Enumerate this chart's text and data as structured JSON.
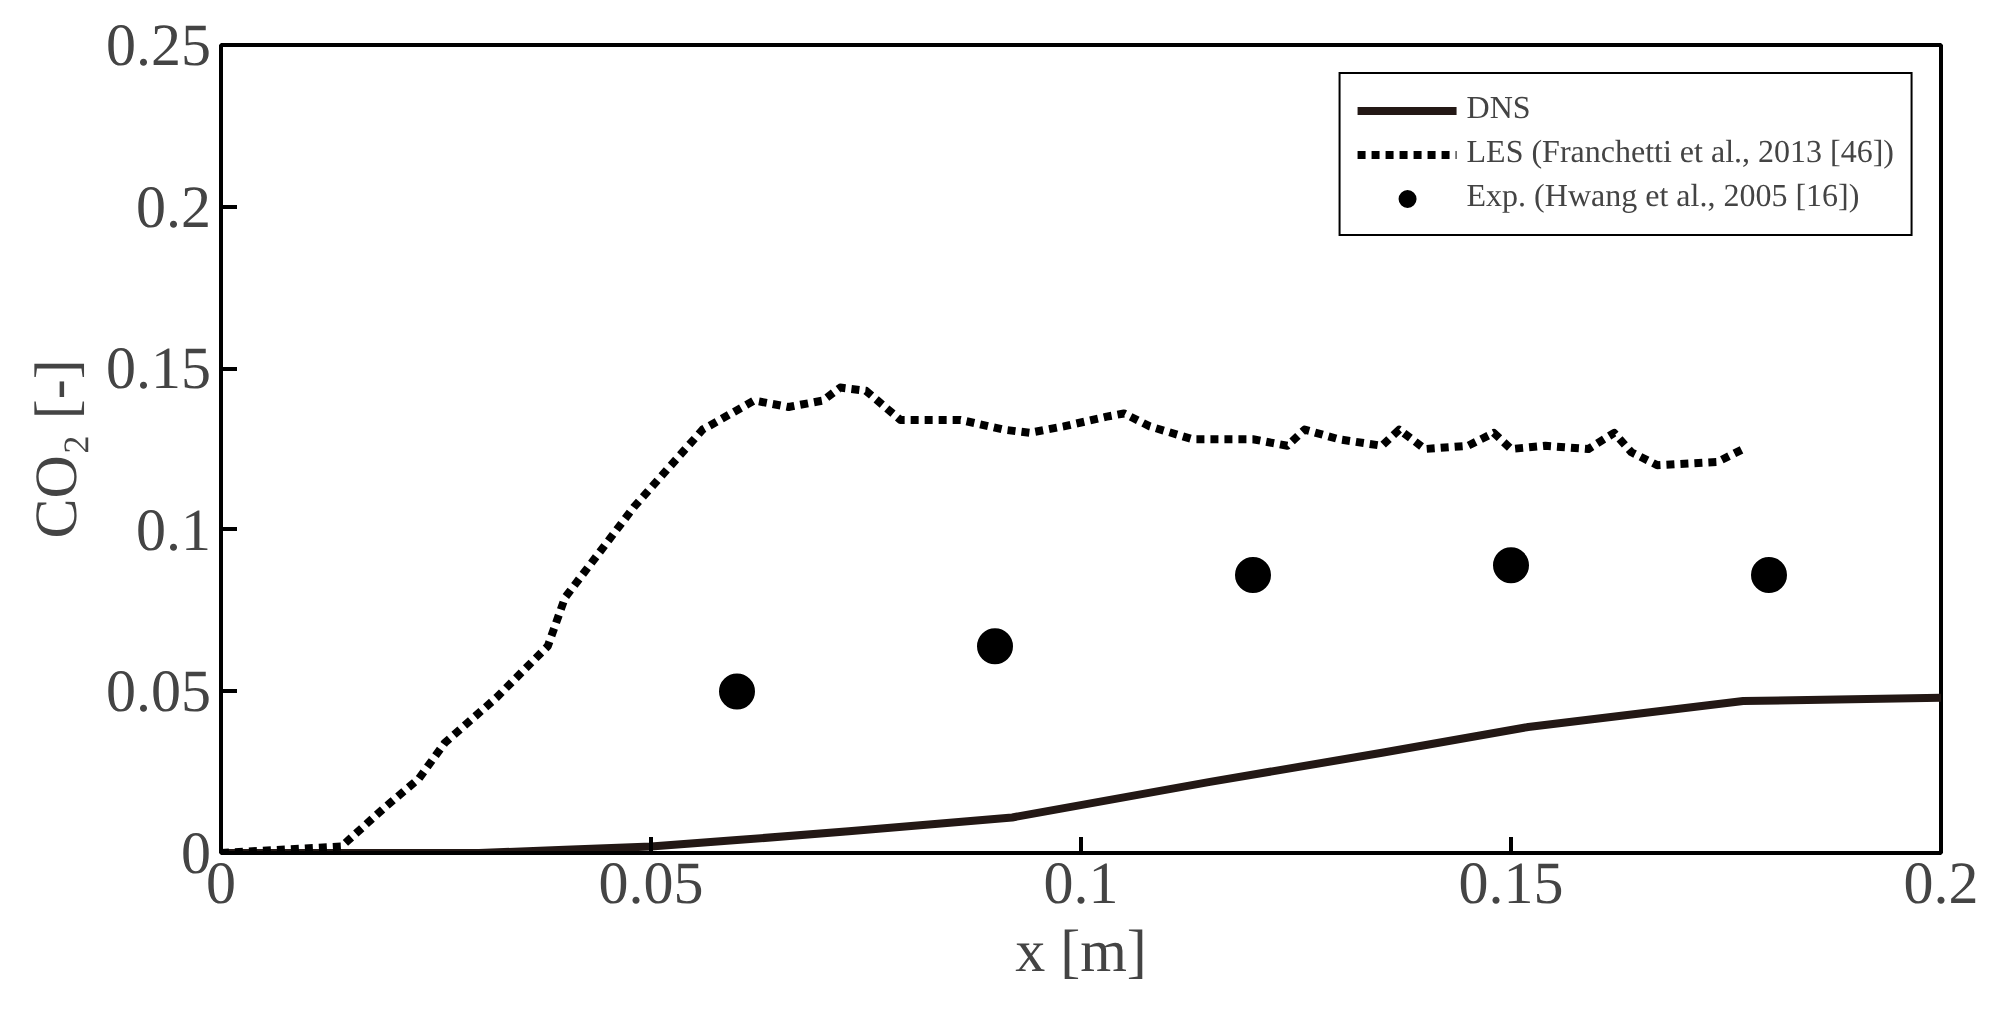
{
  "chart_data": {
    "type": "line",
    "xlabel": "x [m]",
    "ylabel": "CO₂ [-]",
    "xlim": [
      0,
      0.2
    ],
    "ylim": [
      0,
      0.25
    ],
    "xticks": [
      0,
      0.05,
      0.1,
      0.15,
      0.2
    ],
    "yticks": [
      0,
      0.05,
      0.1,
      0.15,
      0.2,
      0.25
    ],
    "grid": false,
    "legend": "top right",
    "series": [
      {
        "name": "DNS",
        "line_style": "solid",
        "color": "#231815",
        "x": [
          0,
          0.03,
          0.04,
          0.05,
          0.06,
          0.073,
          0.092,
          0.115,
          0.135,
          0.152,
          0.177,
          0.2
        ],
        "values": [
          0,
          0,
          0.001,
          0.002,
          0.004,
          0.0067,
          0.011,
          0.022,
          0.031,
          0.039,
          0.047,
          0.048
        ]
      },
      {
        "name": "LES (Franchetti et al., 2013 [46])",
        "line_style": "dashed",
        "color": "#000000",
        "x": [
          0,
          0.014,
          0.019,
          0.023,
          0.026,
          0.032,
          0.038,
          0.04,
          0.044,
          0.048,
          0.052,
          0.056,
          0.062,
          0.066,
          0.07,
          0.072,
          0.075,
          0.079,
          0.086,
          0.091,
          0.094,
          0.098,
          0.103,
          0.105,
          0.108,
          0.113,
          0.12,
          0.124,
          0.126,
          0.13,
          0.135,
          0.137,
          0.14,
          0.145,
          0.148,
          0.15,
          0.154,
          0.159,
          0.162,
          0.164,
          0.167,
          0.174,
          0.177
        ],
        "values": [
          0,
          0.002,
          0.014,
          0.023,
          0.034,
          0.048,
          0.064,
          0.079,
          0.093,
          0.107,
          0.119,
          0.131,
          0.14,
          0.138,
          0.14,
          0.144,
          0.143,
          0.134,
          0.134,
          0.131,
          0.13,
          0.132,
          0.135,
          0.136,
          0.132,
          0.128,
          0.128,
          0.126,
          0.131,
          0.128,
          0.126,
          0.131,
          0.125,
          0.126,
          0.13,
          0.125,
          0.126,
          0.125,
          0.13,
          0.124,
          0.12,
          0.121,
          0.125
        ]
      },
      {
        "name": "Exp. (Hwang et al., 2005 [16])",
        "type": "scatter",
        "marker": "circle",
        "color": "#000000",
        "x": [
          0.06,
          0.09,
          0.12,
          0.15,
          0.18
        ],
        "values": [
          0.05,
          0.064,
          0.086,
          0.089,
          0.086
        ]
      }
    ]
  }
}
